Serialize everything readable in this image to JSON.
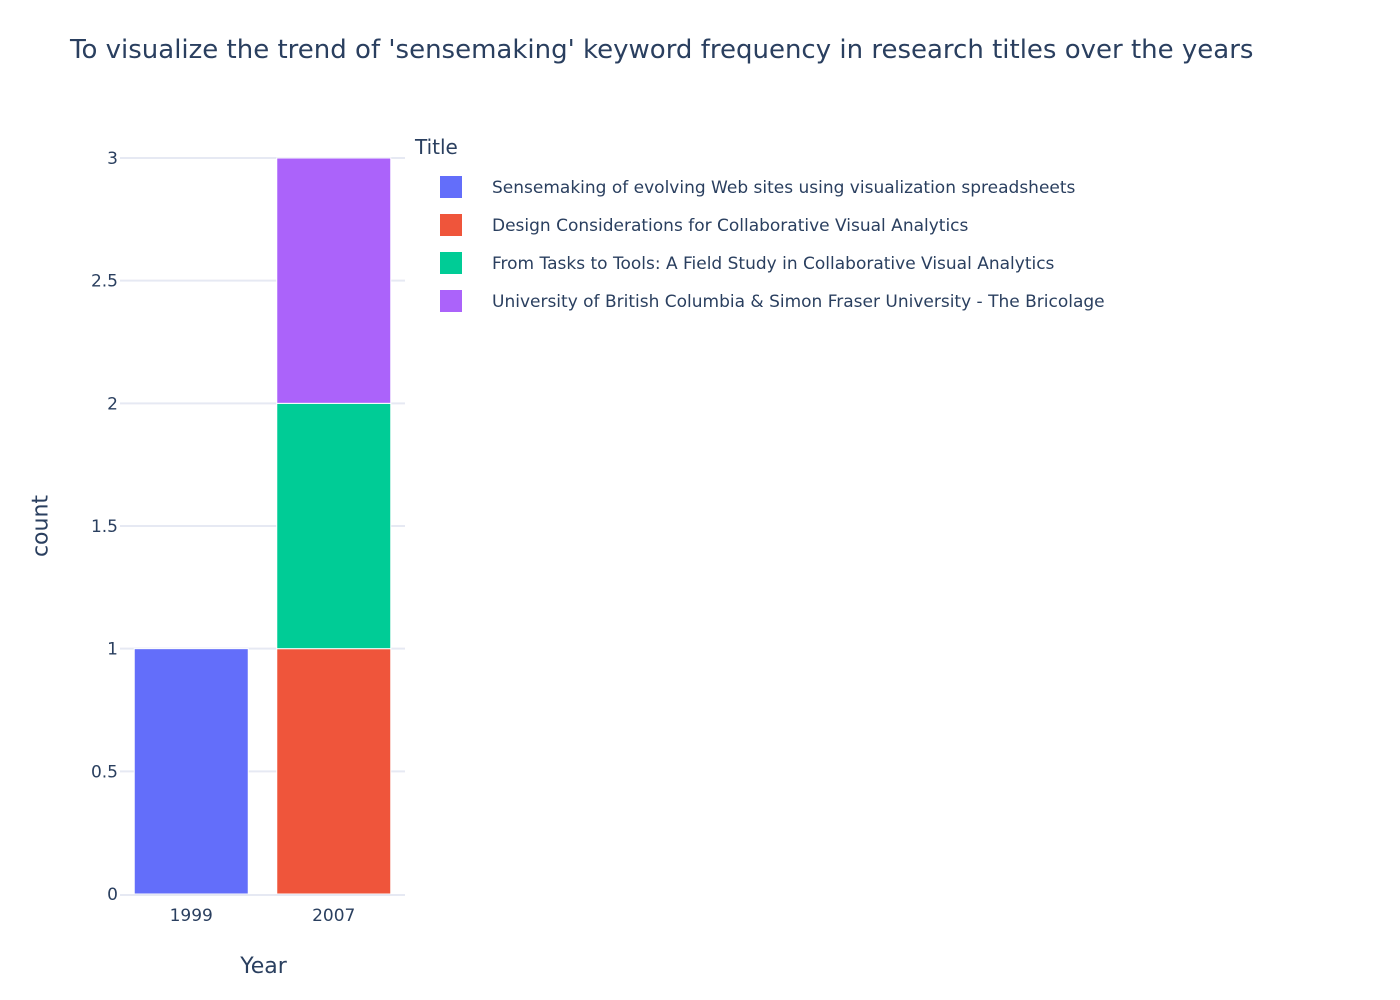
{
  "chart_data": {
    "type": "bar",
    "title": "To visualize the trend of 'sensemaking' keyword frequency in research titles over the years",
    "xlabel": "Year",
    "ylabel": "count",
    "categories": [
      "1999",
      "2007"
    ],
    "ylim": [
      0,
      3
    ],
    "yticks": [
      0,
      0.5,
      1,
      1.5,
      2,
      2.5,
      3
    ],
    "stacked": true,
    "grid": true,
    "legend": {
      "title": "Title",
      "placement": "right"
    },
    "series": [
      {
        "name": "Sensemaking of evolving Web sites using visualization spreadsheets",
        "color": "#636efa",
        "values": [
          1,
          0
        ]
      },
      {
        "name": "Design Considerations for Collaborative Visual Analytics",
        "color": "#ef553b",
        "values": [
          0,
          1
        ]
      },
      {
        "name": "From Tasks to Tools: A Field Study in Collaborative Visual Analytics",
        "color": "#00cc96",
        "values": [
          0,
          1
        ]
      },
      {
        "name": "University of British Columbia & Simon Fraser University - The Bricolage",
        "color": "#ab63fa",
        "values": [
          0,
          1
        ]
      }
    ]
  }
}
